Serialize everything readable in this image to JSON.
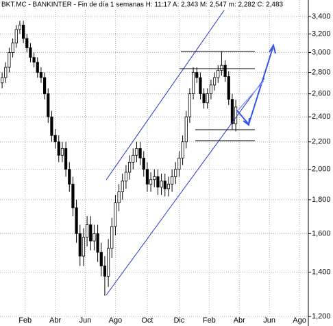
{
  "chart_data": {
    "type": "candlestick",
    "title": "BKT.MC - BANKINTER - Fin de día 1 semanas  H: 11:17  A: 2,343  M: 2,547  m: 2,282  C: 2,483",
    "open": [
      2700,
      2750,
      2850,
      3000,
      3100,
      3250,
      3300,
      3150,
      3050,
      2950,
      2900,
      2800,
      2750,
      2600,
      2400,
      2250,
      2200,
      2100,
      2150,
      2000,
      1900,
      1750,
      1600,
      1480,
      1580,
      1650,
      1560,
      1600,
      1500,
      1430,
      1380,
      1520,
      1640,
      1780,
      1850,
      1920,
      1980,
      2050,
      2100,
      2150,
      2080,
      2000,
      1900,
      1930,
      1950,
      1880,
      1920,
      1870,
      1900,
      1950,
      2000,
      2080,
      2200,
      2400,
      2600,
      2800,
      2750,
      2600,
      2520,
      2600,
      2680,
      2750,
      2820,
      2870,
      2760,
      2550,
      2343
    ],
    "high": [
      2800,
      2900,
      3050,
      3150,
      3300,
      3350,
      3350,
      3200,
      3100,
      3000,
      2950,
      2850,
      2800,
      2650,
      2450,
      2300,
      2250,
      2200,
      2200,
      2050,
      1950,
      1800,
      1650,
      1630,
      1700,
      1700,
      1650,
      1650,
      1550,
      1480,
      1570,
      1690,
      1830,
      1900,
      1970,
      2030,
      2100,
      2150,
      2200,
      2200,
      2130,
      2050,
      1980,
      2000,
      2000,
      1970,
      1970,
      1950,
      2000,
      2050,
      2130,
      2250,
      2450,
      2650,
      2850,
      2850,
      2800,
      2650,
      2650,
      2730,
      2800,
      2870,
      3010,
      2920,
      2810,
      2600,
      2547
    ],
    "low": [
      2650,
      2700,
      2800,
      2950,
      3050,
      3200,
      3100,
      3000,
      2900,
      2850,
      2750,
      2700,
      2550,
      2350,
      2200,
      2150,
      2050,
      2050,
      1950,
      1850,
      1700,
      1550,
      1430,
      1430,
      1530,
      1510,
      1510,
      1450,
      1380,
      1290,
      1330,
      1470,
      1590,
      1730,
      1800,
      1870,
      1930,
      2000,
      2050,
      2030,
      1950,
      1850,
      1850,
      1880,
      1830,
      1830,
      1820,
      1820,
      1850,
      1900,
      1950,
      2030,
      2150,
      2350,
      2550,
      2700,
      2550,
      2470,
      2470,
      2550,
      2630,
      2700,
      2770,
      2710,
      2500,
      2293,
      2282
    ],
    "close": [
      2750,
      2850,
      3000,
      3100,
      3250,
      3300,
      3150,
      3050,
      2950,
      2900,
      2800,
      2750,
      2600,
      2400,
      2250,
      2200,
      2100,
      2150,
      2000,
      1900,
      1750,
      1600,
      1480,
      1580,
      1650,
      1560,
      1600,
      1500,
      1430,
      1380,
      1520,
      1640,
      1780,
      1850,
      1920,
      1980,
      2050,
      2100,
      2150,
      2080,
      2000,
      1900,
      1930,
      1950,
      1880,
      1920,
      1870,
      1900,
      1950,
      2000,
      2080,
      2200,
      2400,
      2600,
      2800,
      2750,
      2600,
      2520,
      2600,
      2680,
      2750,
      2820,
      2870,
      2760,
      2550,
      2343,
      2483
    ],
    "up_color": "#ffffff",
    "down_color": "#000000",
    "edge_color": "#000000",
    "log_scale": true,
    "grid": true,
    "xlim": [
      -0.6,
      86.5
    ],
    "xticks": [
      {
        "value": 6.5,
        "label": "Feb"
      },
      {
        "value": 15,
        "label": "Abr"
      },
      {
        "value": 23.5,
        "label": "Jun"
      },
      {
        "value": 32,
        "label": "Ago"
      },
      {
        "value": 41,
        "label": "Oct"
      },
      {
        "value": 50,
        "label": "Dic"
      },
      {
        "value": 58.5,
        "label": "Feb"
      },
      {
        "value": 67,
        "label": "Abr"
      },
      {
        "value": 75.5,
        "label": "Jun"
      },
      {
        "value": 84,
        "label": "Ago"
      }
    ],
    "ylim": [
      1175,
      3600
    ],
    "yticks": [
      {
        "value": 1200,
        "label": "1,200"
      },
      {
        "value": 1400,
        "label": "1,400"
      },
      {
        "value": 1600,
        "label": "1,600"
      },
      {
        "value": 1800,
        "label": "1,800"
      },
      {
        "value": 2000,
        "label": "2,000"
      },
      {
        "value": 2200,
        "label": "2,200"
      },
      {
        "value": 2400,
        "label": "2,400"
      },
      {
        "value": 2600,
        "label": "2,600"
      },
      {
        "value": 2800,
        "label": "2,800"
      },
      {
        "value": 3000,
        "label": "3,000"
      },
      {
        "value": 3200,
        "label": "3,200"
      },
      {
        "value": 3400,
        "label": "3,400"
      }
    ]
  }
}
